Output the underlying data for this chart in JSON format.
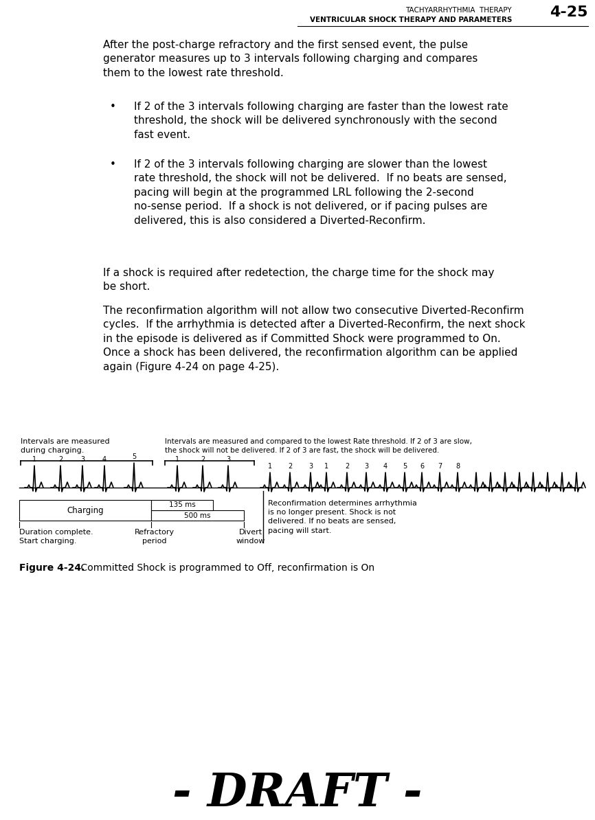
{
  "page_title_line1": "TACHYARRHYTHMIA  THERAPY",
  "page_title_line2": "VENTRICULAR SHOCK THERAPY AND PARAMETERS",
  "page_number": "4-25",
  "para1": "After the post-charge refractory and the first sensed event, the pulse\ngenerator measures up to 3 intervals following charging and compares\nthem to the lowest rate threshold.",
  "para2a": "•",
  "para2b": "If 2 of the 3 intervals following charging are faster than the lowest rate\nthreshold, the shock will be delivered synchronously with the second\nfast event.",
  "para3a": "•",
  "para3b": "If 2 of the 3 intervals following charging are slower than the lowest\nrate threshold, the shock will not be delivered.  If no beats are sensed,\npacing will begin at the programmed LRL following the 2-second\nno-sense period.  If a shock is not delivered, or if pacing pulses are\ndelivered, this is also considered a Diverted-Reconfirm.",
  "para4": "If a shock is required after redetection, the charge time for the shock may\nbe short.",
  "para5": "The reconfirmation algorithm will not allow two consecutive Diverted-Reconfirm\ncycles.  If the arrhythmia is detected after a Diverted-Reconfirm, the next shock\nin the episode is delivered as if Committed Shock were programmed to On.\nOnce a shock has been delivered, the reconfirmation algorithm can be applied\nagain (Figure 4-24 on page 4-25).",
  "draft_text": "- DRAFT -",
  "figure_caption_bold": "Figure 4-24.",
  "figure_caption_rest": "    Committed Shock is programmed to Off, reconfirmation is On",
  "label_measured_during": "Intervals are measured\nduring charging.",
  "label_compared": "Intervals are measured and compared to the lowest Rate threshold. If 2 of 3 are slow,\nthe shock will not be delivered. If 2 of 3 are fast, the shock will be delivered.",
  "label_reconfirm": "Reconfirmation determines arrhythmia\nis no longer present. Shock is not\ndelivered. If no beats are sensed,\npacing will start.",
  "label_duration": "Duration complete.\nStart charging.",
  "label_refractory": "Refractory\nperiod",
  "label_divert": "Divert\nwindow",
  "label_charging": "Charging",
  "label_500ms": "500 ms",
  "label_135ms": "135 ms",
  "bg_color": "#ffffff",
  "text_color": "#000000"
}
